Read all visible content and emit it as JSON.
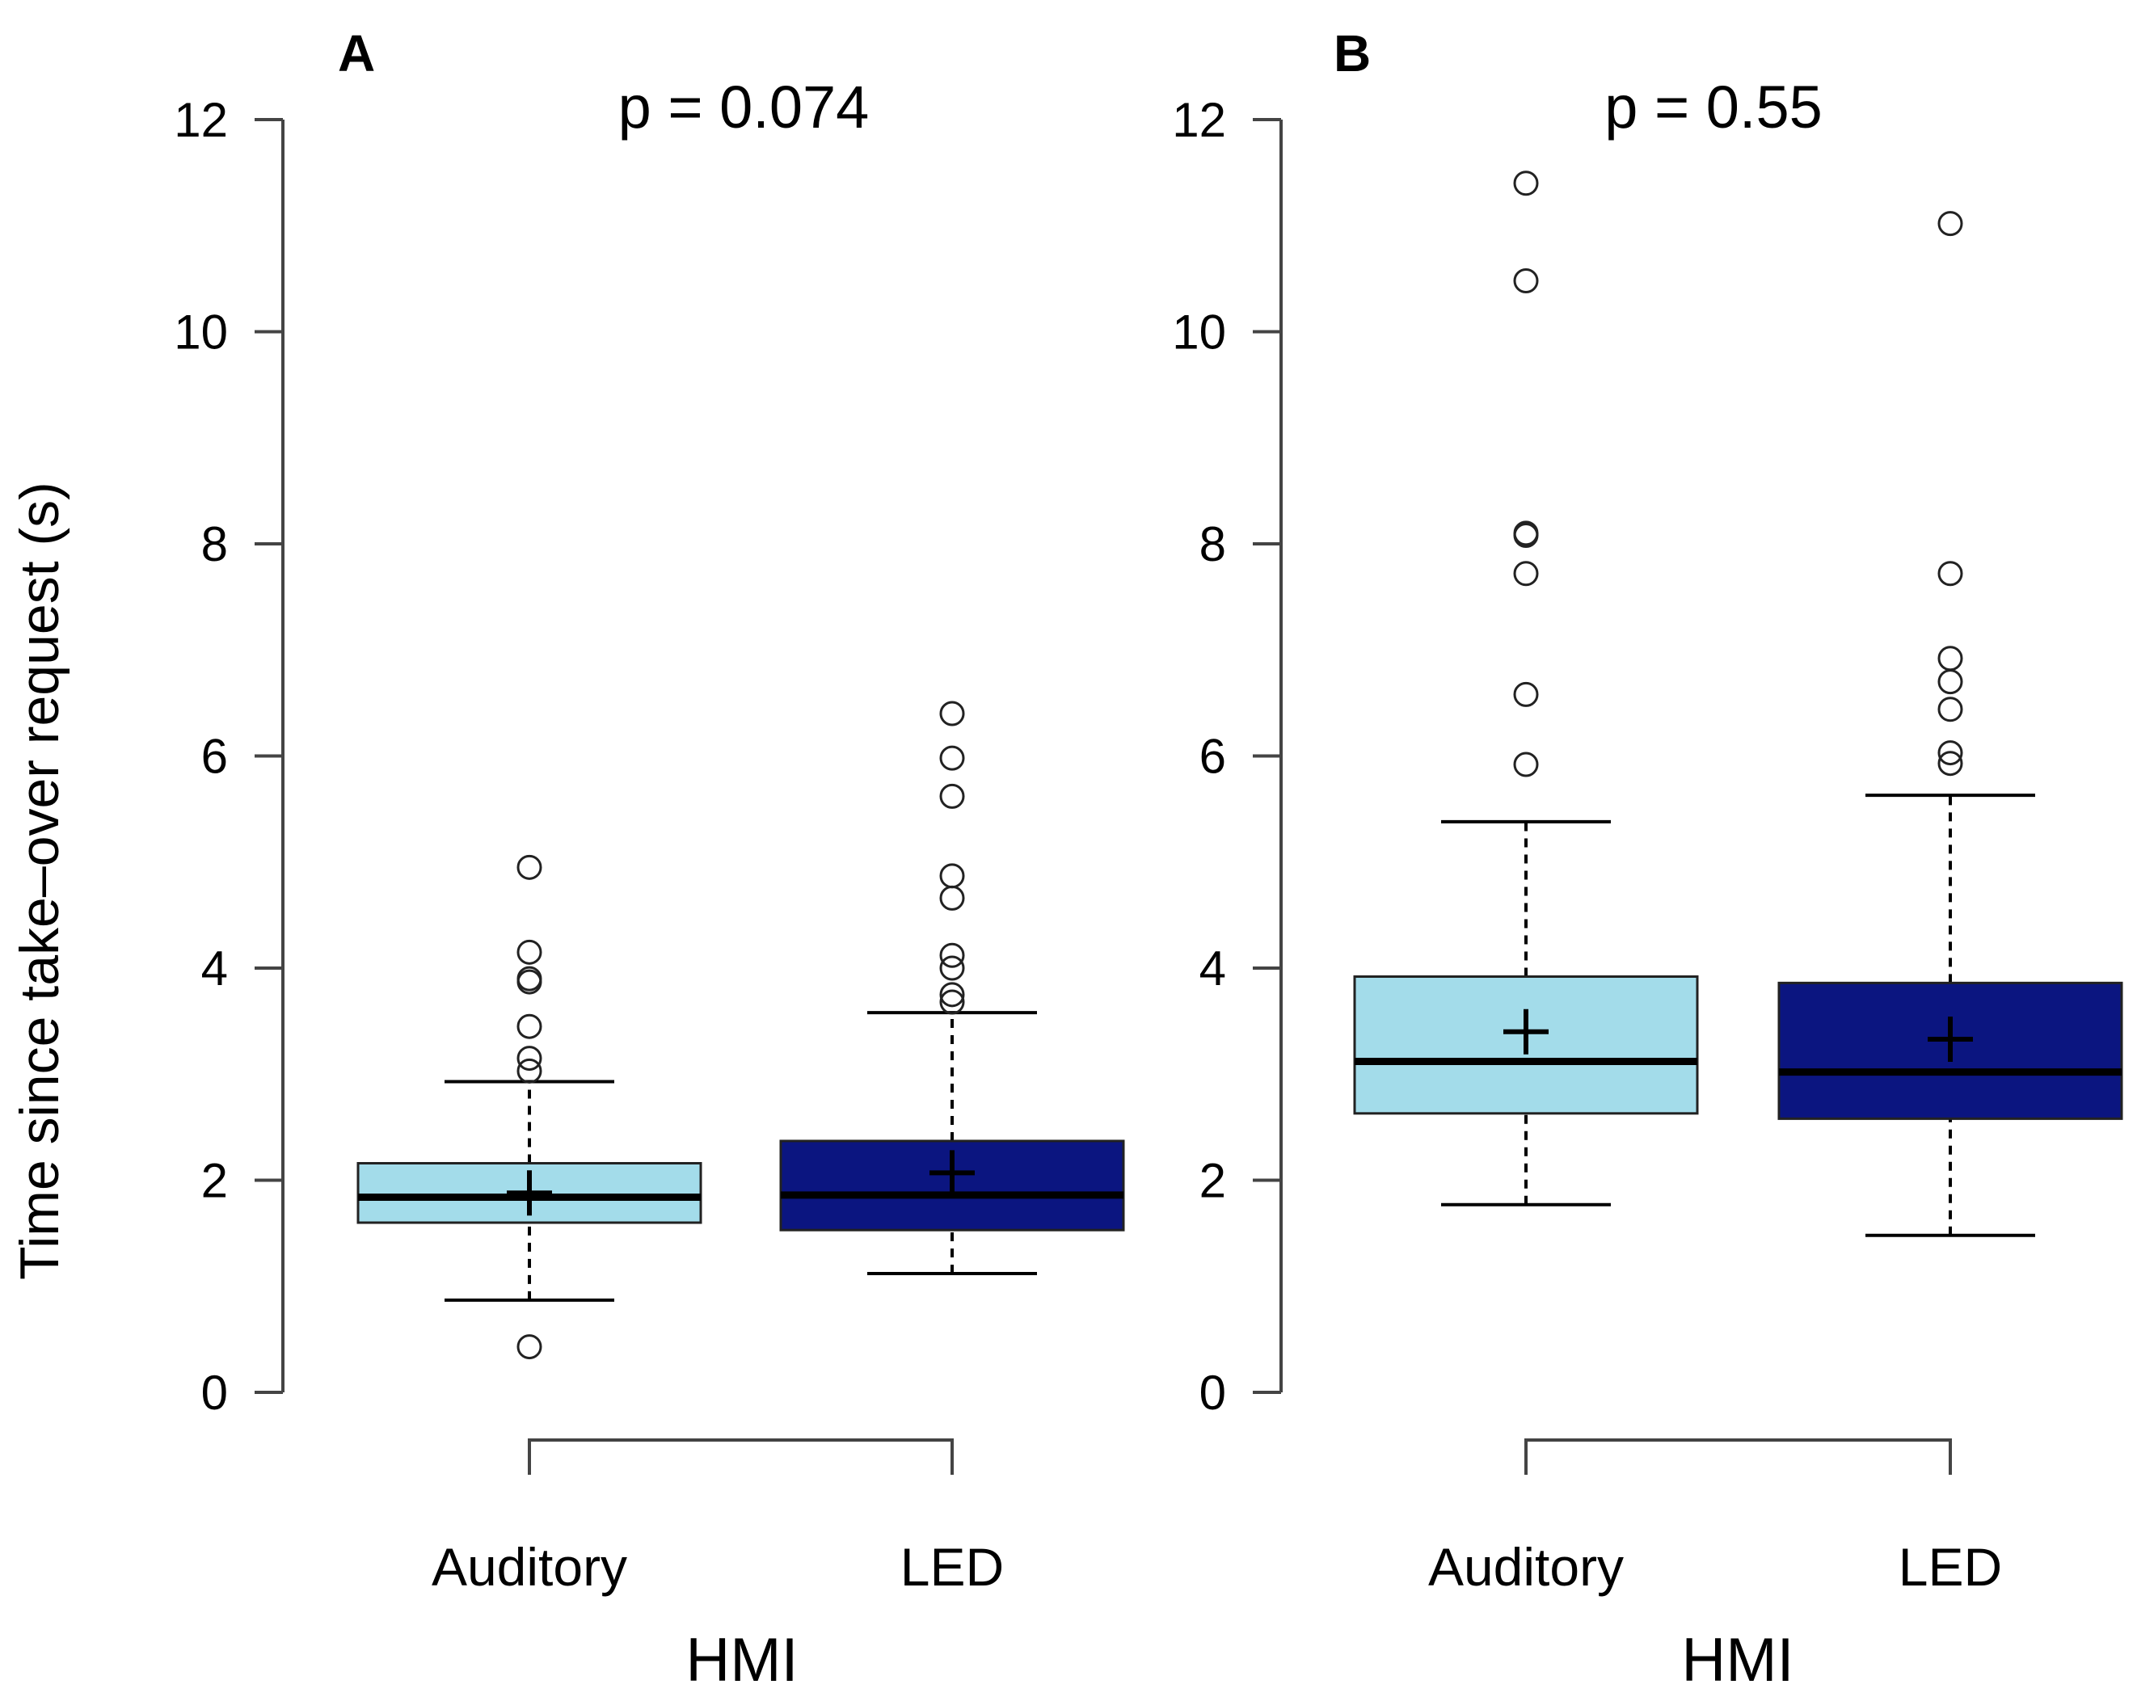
{
  "figure": {
    "ylabel": "Time since take–over request (s)"
  },
  "chart_data": [
    {
      "type": "box",
      "panel": "A",
      "title": "p = 0.074",
      "xlabel": "HMI",
      "ylabel": "Time since take–over request (s)",
      "ylim": [
        0,
        12
      ],
      "yticks": [
        "0",
        "2",
        "4",
        "6",
        "8",
        "10",
        "12"
      ],
      "categories": [
        "Auditory",
        "LED"
      ],
      "boxes": [
        {
          "name": "Auditory",
          "color": "#a3dcea",
          "whisker_low": 0.87,
          "q1": 1.6,
          "median": 1.84,
          "q3": 2.16,
          "whisker_high": 2.93,
          "mean": 1.88,
          "outliers": [
            0.43,
            3.03,
            3.15,
            3.45,
            3.87,
            3.9,
            4.15,
            4.95
          ]
        },
        {
          "name": "LED",
          "color": "#0b1580",
          "whisker_low": 1.12,
          "q1": 1.53,
          "median": 1.86,
          "q3": 2.37,
          "whisker_high": 3.58,
          "mean": 2.07,
          "outliers": [
            3.68,
            3.75,
            4.0,
            4.12,
            4.66,
            4.87,
            5.62,
            5.98,
            6.4
          ]
        }
      ]
    },
    {
      "type": "box",
      "panel": "B",
      "title": "p = 0.55",
      "xlabel": "HMI",
      "ylabel": "Time since take–over request (s)",
      "ylim": [
        0,
        12
      ],
      "yticks": [
        "0",
        "2",
        "4",
        "6",
        "8",
        "10",
        "12"
      ],
      "categories": [
        "Auditory",
        "LED"
      ],
      "boxes": [
        {
          "name": "Auditory",
          "color": "#a3dcea",
          "whisker_low": 1.77,
          "q1": 2.63,
          "median": 3.12,
          "q3": 3.92,
          "whisker_high": 5.38,
          "mean": 3.4,
          "outliers": [
            5.92,
            6.58,
            7.72,
            8.08,
            8.1,
            10.48,
            11.4
          ]
        },
        {
          "name": "LED",
          "color": "#0b1580",
          "whisker_low": 1.48,
          "q1": 2.58,
          "median": 3.02,
          "q3": 3.86,
          "whisker_high": 5.63,
          "mean": 3.33,
          "outliers": [
            5.93,
            6.03,
            6.44,
            6.7,
            6.92,
            7.72,
            11.02
          ]
        }
      ]
    }
  ]
}
